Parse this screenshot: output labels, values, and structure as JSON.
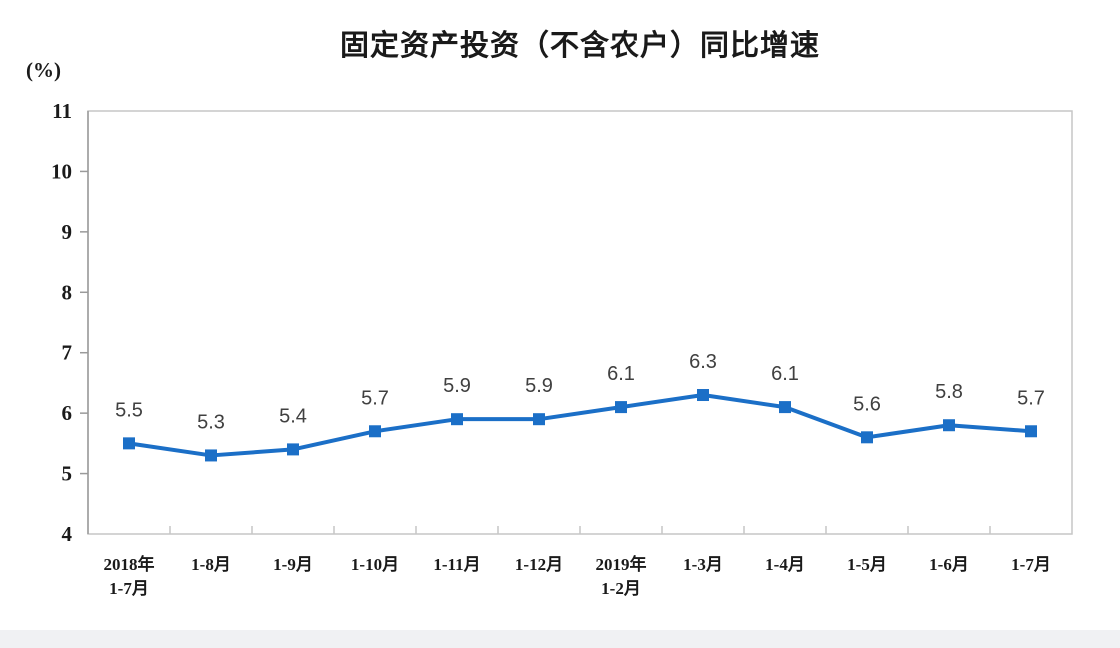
{
  "page": {
    "background_color": "#ffffff",
    "footer_strip_color": "#f0f1f3"
  },
  "chart_data": {
    "type": "line",
    "title": "固定资产投资（不含农户）同比增速",
    "unit_label": "(%)",
    "categories": [
      [
        "2018年",
        "1-7月"
      ],
      [
        "1-8月"
      ],
      [
        "1-9月"
      ],
      [
        "1-10月"
      ],
      [
        "1-11月"
      ],
      [
        "1-12月"
      ],
      [
        "2019年",
        "1-2月"
      ],
      [
        "1-3月"
      ],
      [
        "1-4月"
      ],
      [
        "1-5月"
      ],
      [
        "1-6月"
      ],
      [
        "1-7月"
      ]
    ],
    "values": [
      5.5,
      5.3,
      5.4,
      5.7,
      5.9,
      5.9,
      6.1,
      6.3,
      6.1,
      5.6,
      5.8,
      5.7
    ],
    "data_labels": [
      "5.5",
      "5.3",
      "5.4",
      "5.7",
      "5.9",
      "5.9",
      "6.1",
      "6.3",
      "6.1",
      "5.6",
      "5.8",
      "5.7"
    ],
    "ylim": [
      4,
      11
    ],
    "yticks": [
      4,
      5,
      6,
      7,
      8,
      9,
      10,
      11
    ],
    "grid": false,
    "legend": "none",
    "line_color": "#1b6fc7",
    "marker": "square",
    "marker_size": 12,
    "data_label_color": "#404040",
    "axis_color": "#9a9a9a",
    "frame_color": "#c6c6c6",
    "xlabel": "",
    "ylabel": "(%)"
  }
}
